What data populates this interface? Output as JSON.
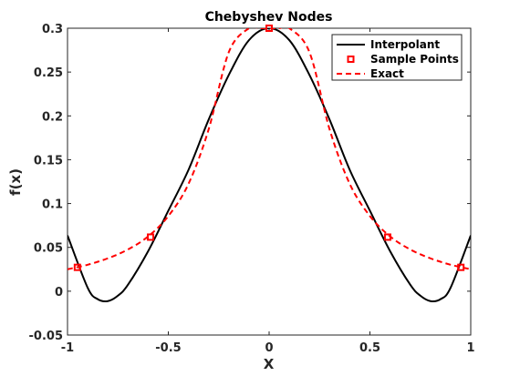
{
  "chart_data": {
    "type": "line",
    "title": "Chebyshev Nodes",
    "xlabel": "X",
    "ylabel": "f(x)",
    "xlim": [
      -1,
      1
    ],
    "ylim": [
      -0.05,
      0.3
    ],
    "xticks": [
      -1,
      -0.5,
      0,
      0.5,
      1
    ],
    "xtick_labels": [
      "-1",
      "-0.5",
      "0",
      "0.5",
      "1"
    ],
    "yticks": [
      -0.05,
      0,
      0.05,
      0.1,
      0.15,
      0.2,
      0.25,
      0.3
    ],
    "ytick_labels": [
      "-0.05",
      "0",
      "0.05",
      "0.1",
      "0.15",
      "0.2",
      "0.25",
      "0.3"
    ],
    "grid": false,
    "legend_position": "top-right",
    "series": [
      {
        "name": "Interpolant",
        "style": "solid",
        "color": "#000000",
        "x": [
          -1,
          -0.9,
          -0.85,
          -0.8,
          -0.75,
          -0.7,
          -0.6,
          -0.5,
          -0.4,
          -0.3,
          -0.2,
          -0.1,
          0,
          0.1,
          0.2,
          0.3,
          0.4,
          0.5,
          0.6,
          0.7,
          0.75,
          0.8,
          0.85,
          0.9,
          1
        ],
        "y": [
          0.0636,
          0.0039,
          -0.0091,
          -0.0113,
          -0.0051,
          0.0074,
          0.0457,
          0.0918,
          0.1384,
          0.1957,
          0.2467,
          0.2864,
          0.3,
          0.2864,
          0.2467,
          0.1957,
          0.1384,
          0.0918,
          0.0457,
          0.0074,
          -0.0051,
          -0.0113,
          -0.0091,
          0.0039,
          0.0636
        ]
      },
      {
        "name": "Sample Points",
        "style": "markers",
        "marker": "square",
        "color": "#ff0000",
        "x": [
          -0.951,
          -0.588,
          0,
          0.588,
          0.951
        ],
        "y": [
          0.0272,
          0.0617,
          0.3,
          0.0617,
          0.0272
        ]
      },
      {
        "name": "Exact",
        "style": "dashed",
        "color": "#ff0000",
        "x": [
          -1,
          -0.9,
          -0.8,
          -0.7,
          -0.6,
          -0.5,
          -0.4,
          -0.3,
          -0.2,
          -0.1,
          -0.05,
          0,
          0.05,
          0.1,
          0.2,
          0.3,
          0.4,
          0.5,
          0.6,
          0.7,
          0.8,
          0.9,
          1
        ],
        "y": [
          0.025,
          0.0302,
          0.0375,
          0.0476,
          0.0625,
          0.0857,
          0.1224,
          0.1846,
          0.2727,
          0.3,
          0.3,
          0.3,
          0.3,
          0.3,
          0.2727,
          0.1846,
          0.1224,
          0.0857,
          0.0625,
          0.0476,
          0.0375,
          0.0302,
          0.025
        ]
      }
    ]
  }
}
